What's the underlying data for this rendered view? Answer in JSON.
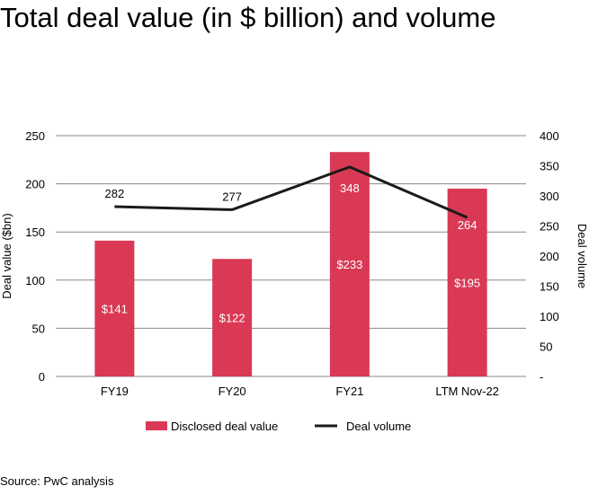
{
  "title": "Total deal value (in $ billion) and volume",
  "source": "Source: PwC analysis",
  "chart_data": {
    "type": "bar+line",
    "categories": [
      "FY19",
      "FY20",
      "FY21",
      "LTM Nov-22"
    ],
    "series": [
      {
        "name": "Disclosed deal value",
        "type": "bar",
        "axis": "left",
        "values": [
          141,
          122,
          233,
          195
        ],
        "labels": [
          "$141",
          "$122",
          "$233",
          "$195"
        ],
        "color": "#d93954"
      },
      {
        "name": "Deal volume",
        "type": "line",
        "axis": "right",
        "values": [
          282,
          277,
          348,
          264
        ],
        "labels": [
          "282",
          "277",
          "348",
          "264"
        ],
        "color": "#1a1a1a"
      }
    ],
    "ylabel": "Deal value  ($bn)",
    "ylabel_right": "Deal volume",
    "ylim": [
      0,
      250
    ],
    "ylim_right": [
      0,
      400
    ],
    "yticks": [
      "0",
      "50",
      "100",
      "150",
      "200",
      "250"
    ],
    "yticks_right": [
      "-",
      "50",
      "100",
      "150",
      "200",
      "250",
      "300",
      "350",
      "400"
    ],
    "grid": true,
    "legend": "bottom"
  }
}
